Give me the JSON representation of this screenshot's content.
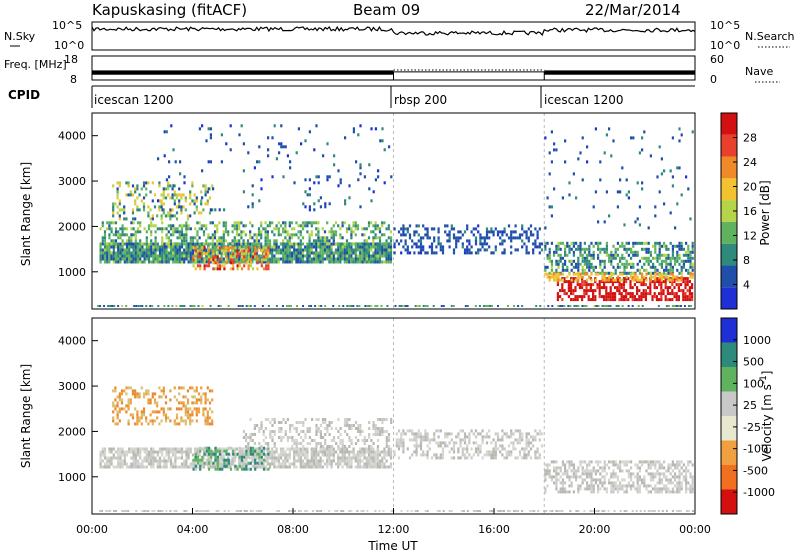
{
  "header": {
    "title": "Kapuskasing (fitACF)",
    "beam": "Beam 09",
    "date": "22/Mar/2014"
  },
  "chart_data": [
    {
      "type": "line",
      "panel": "noise",
      "left_label": "N.Sky",
      "right_label": "N.Search",
      "left_ticks": [
        "10^5",
        "10^0"
      ],
      "right_ticks": [
        "10^5",
        "10^0"
      ],
      "series": [
        {
          "name": "N.Sky",
          "style": "solid"
        },
        {
          "name": "N.Search",
          "style": "dotted"
        }
      ]
    },
    {
      "type": "line",
      "panel": "frequency_nave",
      "left_label": "Freq. [MHz]",
      "right_label": "Nave",
      "left_ticks": [
        "18",
        "8"
      ],
      "right_ticks": [
        "60",
        "0"
      ],
      "segments": [
        {
          "start_hr": 0,
          "end_hr": 12,
          "freq_band": [
            10.2,
            12.0
          ]
        },
        {
          "start_hr": 12,
          "end_hr": 18,
          "freq": 11.4,
          "nave_dotted": 25
        },
        {
          "start_hr": 18,
          "end_hr": 24,
          "freq_band": [
            10.2,
            12.0
          ]
        }
      ]
    },
    {
      "type": "table",
      "panel": "cpid",
      "label": "CPID",
      "segments": [
        {
          "start_hr": 0,
          "end_hr": 12,
          "name": "icescan 1200"
        },
        {
          "start_hr": 12,
          "end_hr": 18,
          "name": "rbsp 200"
        },
        {
          "start_hr": 18,
          "end_hr": 24,
          "name": "icescan 1200"
        }
      ]
    },
    {
      "type": "heatmap",
      "panel": "power",
      "ylabel": "Slant Range [km]",
      "ylim": [
        180,
        4500
      ],
      "yticks": [
        1000,
        2000,
        3000,
        4000
      ],
      "colorbar_label": "Power [dB]",
      "colorbar_ticks": [
        4,
        8,
        12,
        16,
        20,
        24,
        28
      ],
      "colorbar_range": [
        0,
        30
      ],
      "colors": [
        "#1f2fd6",
        "#1f4fa8",
        "#2e8a7a",
        "#5fb35f",
        "#b5d44a",
        "#f2c230",
        "#f08a28",
        "#e8402c",
        "#d40f0f"
      ],
      "regions": [
        {
          "t": [
            0.3,
            11.9
          ],
          "r": [
            1250,
            1650
          ],
          "v": [
            4,
            14
          ],
          "d": 0.9
        },
        {
          "t": [
            0.3,
            11.9
          ],
          "r": [
            1650,
            2150
          ],
          "v": [
            6,
            16
          ],
          "d": 0.45
        },
        {
          "t": [
            0.8,
            4.8
          ],
          "r": [
            2200,
            3000
          ],
          "v": [
            4,
            20
          ],
          "d": 0.3
        },
        {
          "t": [
            4.0,
            7.0
          ],
          "r": [
            1100,
            1600
          ],
          "v": [
            14,
            28
          ],
          "d": 0.55
        },
        {
          "t": [
            2.5,
            11.9
          ],
          "r": [
            2400,
            4300
          ],
          "v": [
            2,
            8
          ],
          "d": 0.05
        },
        {
          "t": [
            12.0,
            17.9
          ],
          "r": [
            1450,
            2100
          ],
          "v": [
            3,
            7
          ],
          "d": 0.35
        },
        {
          "t": [
            18.0,
            23.9
          ],
          "r": [
            1000,
            1700
          ],
          "v": [
            4,
            14
          ],
          "d": 0.55
        },
        {
          "t": [
            18.5,
            23.9
          ],
          "r": [
            420,
            900
          ],
          "v": [
            26,
            30
          ],
          "d": 0.6
        },
        {
          "t": [
            18.0,
            23.9
          ],
          "r": [
            850,
            1000
          ],
          "v": [
            16,
            22
          ],
          "d": 0.5
        },
        {
          "t": [
            18.0,
            23.9
          ],
          "r": [
            2000,
            4300
          ],
          "v": [
            3,
            8
          ],
          "d": 0.04
        }
      ]
    },
    {
      "type": "heatmap",
      "panel": "velocity",
      "ylabel": "Slant Range [km]",
      "xlabel": "Time UT",
      "xticks": [
        "00:00",
        "04:00",
        "08:00",
        "12:00",
        "16:00",
        "20:00",
        "00:00"
      ],
      "xlim_hr": [
        0,
        24
      ],
      "ylim": [
        180,
        4500
      ],
      "yticks": [
        1000,
        2000,
        3000,
        4000
      ],
      "colorbar_label": "Velocity [m s^-1]",
      "colorbar_ticks": [
        "1000",
        "500",
        "100",
        "25",
        "-25",
        "-100",
        "-500",
        "-1000"
      ],
      "colors": [
        "#1f2fd6",
        "#2e8a7a",
        "#5fb35f",
        "#c8c8c8",
        "#e8e8d0",
        "#f0a040",
        "#f07020",
        "#d40f0f"
      ],
      "regions": [
        {
          "t": [
            0.3,
            11.9
          ],
          "r": [
            1250,
            1650
          ],
          "cls": "grey",
          "d": 0.8
        },
        {
          "t": [
            0.8,
            4.8
          ],
          "r": [
            2200,
            3000
          ],
          "cls": "orange",
          "d": 0.35
        },
        {
          "t": [
            4.0,
            7.0
          ],
          "r": [
            1200,
            1700
          ],
          "cls": "green",
          "d": 0.5
        },
        {
          "t": [
            6.0,
            11.9
          ],
          "r": [
            1700,
            2300
          ],
          "cls": "grey",
          "d": 0.35
        },
        {
          "t": [
            12.0,
            17.9
          ],
          "r": [
            1450,
            2100
          ],
          "cls": "grey",
          "d": 0.45
        },
        {
          "t": [
            18.0,
            23.9
          ],
          "r": [
            700,
            1400
          ],
          "cls": "grey",
          "d": 0.55
        }
      ]
    }
  ]
}
